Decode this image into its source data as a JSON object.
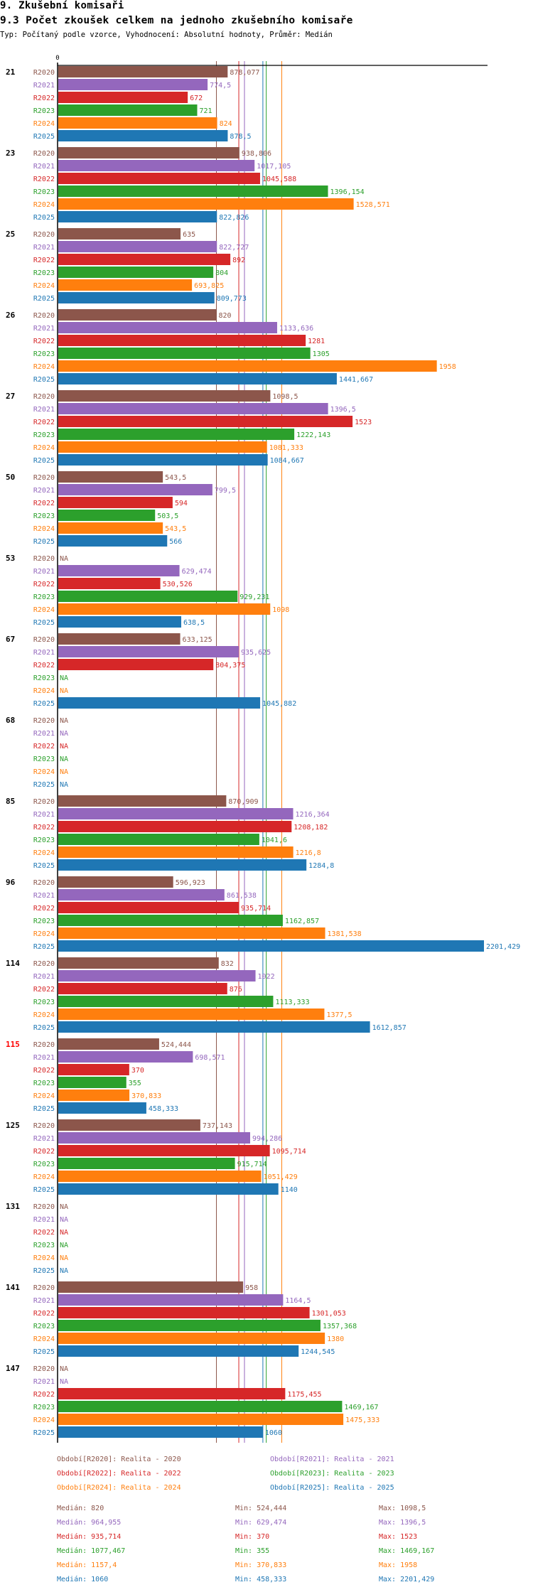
{
  "header": {
    "section_title": "9. Zkušební komisaři",
    "chart_title": "9.3 Počet zkoušek celkem na jednoho zkušebního komisaře",
    "subtitle": "Typ: Počítaný podle vzorce, Vyhodnocení: Absolutní hodnoty, Průměr: Medián"
  },
  "chart_data": {
    "type": "bar",
    "orientation": "horizontal",
    "title": "9.3 Počet zkoušek celkem na jednoho zkušebního komisaře",
    "xlabel": "",
    "ylabel": "",
    "x_tick_labels": [
      "0"
    ],
    "xlim": [
      0,
      2201.429
    ],
    "grid": false,
    "missing_label": "NA",
    "categories": [
      "21",
      "23",
      "25",
      "26",
      "27",
      "50",
      "53",
      "67",
      "68",
      "85",
      "96",
      "114",
      "115",
      "125",
      "131",
      "141",
      "147"
    ],
    "highlighted_category": "115",
    "highlight_color": "#ff0000",
    "series": [
      {
        "name": "R2020",
        "color": "#8c564b",
        "values": [
          878.077,
          938.806,
          635,
          820,
          1098.5,
          543.5,
          null,
          633.125,
          null,
          870.909,
          596.923,
          832,
          524.444,
          737.143,
          null,
          958,
          null
        ],
        "labels": [
          "878,077",
          "938,806",
          "635",
          "820",
          "1098,5",
          "543,5",
          "NA",
          "633,125",
          "NA",
          "870,909",
          "596,923",
          "832",
          "524,444",
          "737,143",
          "NA",
          "958",
          "NA"
        ]
      },
      {
        "name": "R2021",
        "color": "#9467bd",
        "values": [
          774.5,
          1017.105,
          822.727,
          1133.636,
          1396.5,
          799.5,
          629.474,
          935.625,
          null,
          1216.364,
          861.538,
          1022,
          698.571,
          994.286,
          null,
          1164.5,
          null
        ],
        "labels": [
          "774,5",
          "1017,105",
          "822,727",
          "1133,636",
          "1396,5",
          "799,5",
          "629,474",
          "935,625",
          "NA",
          "1216,364",
          "861,538",
          "1022",
          "698,571",
          "994,286",
          "NA",
          "1164,5",
          "NA"
        ]
      },
      {
        "name": "R2022",
        "color": "#d62728",
        "values": [
          672,
          1045.588,
          892,
          1281,
          1523,
          594,
          530.526,
          804.375,
          null,
          1208.182,
          935.714,
          876,
          370,
          1095.714,
          null,
          1301.053,
          1175.455
        ],
        "labels": [
          "672",
          "1045,588",
          "892",
          "1281",
          "1523",
          "594",
          "530,526",
          "804,375",
          "NA",
          "1208,182",
          "935,714",
          "876",
          "370",
          "1095,714",
          "NA",
          "1301,053",
          "1175,455"
        ]
      },
      {
        "name": "R2023",
        "color": "#2ca02c",
        "values": [
          721,
          1396.154,
          804,
          1305,
          1222.143,
          503.5,
          929.231,
          null,
          null,
          1041.6,
          1162.857,
          1113.333,
          355,
          915.714,
          null,
          1357.368,
          1469.167
        ],
        "labels": [
          "721",
          "1396,154",
          "804",
          "1305",
          "1222,143",
          "503,5",
          "929,231",
          "NA",
          "NA",
          "1041,6",
          "1162,857",
          "1113,333",
          "355",
          "915,714",
          "NA",
          "1357,368",
          "1469,167"
        ]
      },
      {
        "name": "R2024",
        "color": "#ff7f0e",
        "values": [
          824,
          1528.571,
          693.825,
          1958,
          1081.333,
          543.5,
          1098,
          null,
          null,
          1216.8,
          1381.538,
          1377.5,
          370.833,
          1051.429,
          null,
          1380,
          1475.333
        ],
        "labels": [
          "824",
          "1528,571",
          "693,825",
          "1958",
          "1081,333",
          "543,5",
          "1098",
          "NA",
          "NA",
          "1216,8",
          "1381,538",
          "1377,5",
          "370,833",
          "1051,429",
          "NA",
          "1380",
          "1475,333"
        ]
      },
      {
        "name": "R2025",
        "color": "#1f77b4",
        "values": [
          878.5,
          822.826,
          809.773,
          1441.667,
          1084.667,
          566,
          638.5,
          1045.882,
          null,
          1284.8,
          2201.429,
          1612.857,
          458.333,
          1140,
          null,
          1244.545,
          1060
        ],
        "labels": [
          "878,5",
          "822,826",
          "809,773",
          "1441,667",
          "1084,667",
          "566",
          "638,5",
          "1045,882",
          "NA",
          "1284,8",
          "2201,429",
          "1612,857",
          "458,333",
          "1140",
          "NA",
          "1244,545",
          "1060"
        ]
      }
    ],
    "reference_lines": [
      {
        "series": "R2020",
        "type": "median",
        "value": 820
      },
      {
        "series": "R2021",
        "type": "median",
        "value": 964.955
      },
      {
        "series": "R2022",
        "type": "median",
        "value": 935.714
      },
      {
        "series": "R2023",
        "type": "median",
        "value": 1077.467
      },
      {
        "series": "R2024",
        "type": "median",
        "value": 1157.4
      },
      {
        "series": "R2025",
        "type": "median",
        "value": 1060
      }
    ],
    "legend": {
      "placement": "bottom",
      "entries": [
        {
          "series": "R2020",
          "text": "Období[R2020]: Realita - 2020"
        },
        {
          "series": "R2021",
          "text": "Období[R2021]: Realita - 2021"
        },
        {
          "series": "R2022",
          "text": "Období[R2022]: Realita - 2022"
        },
        {
          "series": "R2023",
          "text": "Období[R2023]: Realita - 2023"
        },
        {
          "series": "R2024",
          "text": "Období[R2024]: Realita - 2024"
        },
        {
          "series": "R2025",
          "text": "Období[R2025]: Realita - 2025"
        }
      ]
    },
    "stats": [
      {
        "series": "R2020",
        "median": "Medián: 820",
        "min": "Min: 524,444",
        "max": "Max: 1098,5"
      },
      {
        "series": "R2021",
        "median": "Medián: 964,955",
        "min": "Min: 629,474",
        "max": "Max: 1396,5"
      },
      {
        "series": "R2022",
        "median": "Medián: 935,714",
        "min": "Min: 370",
        "max": "Max: 1523"
      },
      {
        "series": "R2023",
        "median": "Medián: 1077,467",
        "min": "Min: 355",
        "max": "Max: 1469,167"
      },
      {
        "series": "R2024",
        "median": "Medián: 1157,4",
        "min": "Min: 370,833",
        "max": "Max: 1958"
      },
      {
        "series": "R2025",
        "median": "Medián: 1060",
        "min": "Min: 458,333",
        "max": "Max: 2201,429"
      }
    ]
  }
}
